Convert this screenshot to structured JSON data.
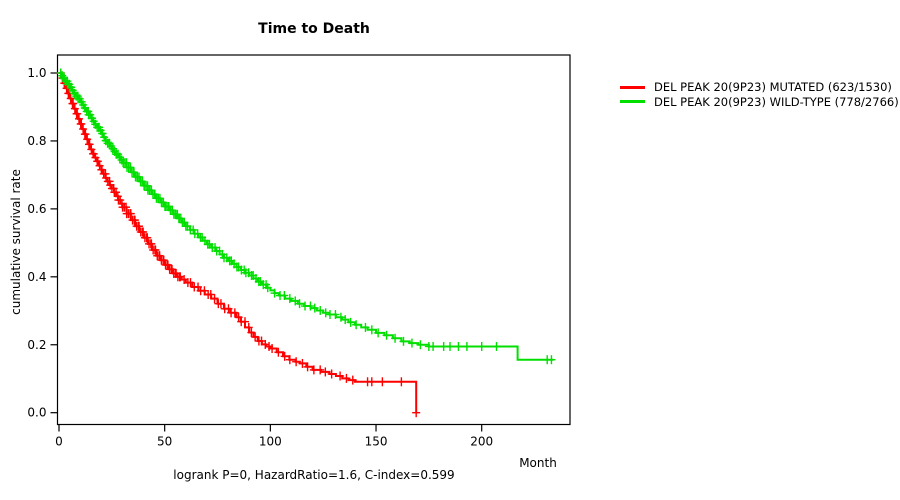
{
  "chart_data": {
    "type": "line",
    "subtype": "kaplan-meier-step-curves",
    "title": "Time to Death",
    "xlabel": "Month",
    "ylabel": "cumulative survival rate",
    "footer": "logrank P=0, HazardRatio=1.6, C-index=0.599",
    "xlim": [
      0,
      242
    ],
    "ylim": [
      0.0,
      1.0
    ],
    "x_ticks": [
      0,
      50,
      100,
      150,
      200
    ],
    "y_ticks": [
      0.0,
      0.2,
      0.4,
      0.6,
      0.8,
      1.0
    ],
    "grid": false,
    "legend_position": "right-outside",
    "axis_color": "#000000",
    "background": "#ffffff",
    "series": [
      {
        "name": "DEL PEAK 20(9P23) MUTATED (623/1530)",
        "color": "#ff0000",
        "steps": [
          [
            0,
            1
          ],
          [
            1,
            0.985
          ],
          [
            2,
            0.97
          ],
          [
            3,
            0.955
          ],
          [
            4,
            0.94
          ],
          [
            5,
            0.925
          ],
          [
            6,
            0.91
          ],
          [
            7,
            0.895
          ],
          [
            8,
            0.88
          ],
          [
            9,
            0.865
          ],
          [
            10,
            0.85
          ],
          [
            11,
            0.835
          ],
          [
            12,
            0.82
          ],
          [
            13,
            0.805
          ],
          [
            14,
            0.79
          ],
          [
            15,
            0.775
          ],
          [
            16,
            0.762
          ],
          [
            17,
            0.751
          ],
          [
            18,
            0.74
          ],
          [
            19,
            0.727
          ],
          [
            20,
            0.715
          ],
          [
            21,
            0.703
          ],
          [
            22,
            0.691
          ],
          [
            23,
            0.681
          ],
          [
            24,
            0.67
          ],
          [
            25,
            0.66
          ],
          [
            26,
            0.649
          ],
          [
            27,
            0.637
          ],
          [
            28,
            0.626
          ],
          [
            29,
            0.615
          ],
          [
            30,
            0.605
          ],
          [
            32,
            0.586
          ],
          [
            34,
            0.567
          ],
          [
            36,
            0.549
          ],
          [
            38,
            0.532
          ],
          [
            40,
            0.515
          ],
          [
            42,
            0.497
          ],
          [
            44,
            0.479
          ],
          [
            46,
            0.462
          ],
          [
            48,
            0.449
          ],
          [
            50,
            0.435
          ],
          [
            52,
            0.422
          ],
          [
            54,
            0.41
          ],
          [
            56,
            0.4
          ],
          [
            58,
            0.392
          ],
          [
            60,
            0.383
          ],
          [
            63,
            0.37
          ],
          [
            66,
            0.359
          ],
          [
            69,
            0.348
          ],
          [
            72,
            0.336
          ],
          [
            75,
            0.321
          ],
          [
            78,
            0.306
          ],
          [
            81,
            0.294
          ],
          [
            84,
            0.281
          ],
          [
            86,
            0.268
          ],
          [
            88,
            0.251
          ],
          [
            90,
            0.236
          ],
          [
            92,
            0.223
          ],
          [
            94,
            0.211
          ],
          [
            96,
            0.201
          ],
          [
            98,
            0.195
          ],
          [
            100,
            0.189
          ],
          [
            103,
            0.178
          ],
          [
            106,
            0.166
          ],
          [
            109,
            0.156
          ],
          [
            112,
            0.15
          ],
          [
            114,
            0.145
          ],
          [
            117,
            0.135
          ],
          [
            120,
            0.126
          ],
          [
            124,
            0.12
          ],
          [
            128,
            0.114
          ],
          [
            131,
            0.108
          ],
          [
            134,
            0.101
          ],
          [
            137,
            0.096
          ],
          [
            140,
            0.091
          ],
          [
            169,
            0.091
          ],
          [
            169,
            0
          ]
        ],
        "censor_ranges": [
          [
            1,
            58,
            0.65
          ],
          [
            59.2,
            99.5,
            1.6
          ],
          [
            101,
            129,
            2.8
          ]
        ],
        "censor_extra": [
          133,
          136,
          139,
          146,
          148,
          153,
          162,
          169
        ]
      },
      {
        "name": "DEL PEAK 20(9P23) WILD-TYPE (778/2766)",
        "color": "#00df00",
        "steps": [
          [
            0,
            1
          ],
          [
            1,
            0.992
          ],
          [
            2,
            0.984
          ],
          [
            3,
            0.976
          ],
          [
            4,
            0.967
          ],
          [
            5,
            0.958
          ],
          [
            6,
            0.949
          ],
          [
            7,
            0.94
          ],
          [
            8,
            0.932
          ],
          [
            9,
            0.924
          ],
          [
            10,
            0.915
          ],
          [
            11,
            0.906
          ],
          [
            12,
            0.897
          ],
          [
            13,
            0.887
          ],
          [
            14,
            0.877
          ],
          [
            15,
            0.867
          ],
          [
            16,
            0.858
          ],
          [
            17,
            0.849
          ],
          [
            18,
            0.84
          ],
          [
            19,
            0.831
          ],
          [
            20,
            0.822
          ],
          [
            21,
            0.811
          ],
          [
            22,
            0.801
          ],
          [
            23,
            0.793
          ],
          [
            24,
            0.785
          ],
          [
            25,
            0.777
          ],
          [
            26,
            0.769
          ],
          [
            27,
            0.761
          ],
          [
            28,
            0.752
          ],
          [
            29,
            0.744
          ],
          [
            30,
            0.736
          ],
          [
            32,
            0.722
          ],
          [
            34,
            0.708
          ],
          [
            36,
            0.694
          ],
          [
            38,
            0.681
          ],
          [
            40,
            0.668
          ],
          [
            42,
            0.655
          ],
          [
            44,
            0.643
          ],
          [
            46,
            0.631
          ],
          [
            48,
            0.619
          ],
          [
            50,
            0.607
          ],
          [
            52,
            0.596
          ],
          [
            54,
            0.584
          ],
          [
            56,
            0.572
          ],
          [
            58,
            0.56
          ],
          [
            60,
            0.549
          ],
          [
            62,
            0.538
          ],
          [
            64,
            0.527
          ],
          [
            66,
            0.516
          ],
          [
            68,
            0.506
          ],
          [
            70,
            0.496
          ],
          [
            72,
            0.486
          ],
          [
            74,
            0.476
          ],
          [
            76,
            0.466
          ],
          [
            78,
            0.456
          ],
          [
            80,
            0.447
          ],
          [
            82,
            0.438
          ],
          [
            84,
            0.429
          ],
          [
            86,
            0.42
          ],
          [
            88,
            0.412
          ],
          [
            90,
            0.404
          ],
          [
            92,
            0.395
          ],
          [
            94,
            0.386
          ],
          [
            96,
            0.377
          ],
          [
            98,
            0.368
          ],
          [
            100,
            0.36
          ],
          [
            102,
            0.352
          ],
          [
            104,
            0.345
          ],
          [
            107,
            0.336
          ],
          [
            110,
            0.329
          ],
          [
            113,
            0.321
          ],
          [
            116,
            0.314
          ],
          [
            119,
            0.308
          ],
          [
            122,
            0.301
          ],
          [
            125,
            0.294
          ],
          [
            128,
            0.289
          ],
          [
            131,
            0.281
          ],
          [
            134,
            0.274
          ],
          [
            137,
            0.266
          ],
          [
            140,
            0.259
          ],
          [
            143,
            0.251
          ],
          [
            146,
            0.244
          ],
          [
            150,
            0.235
          ],
          [
            154,
            0.228
          ],
          [
            158,
            0.219
          ],
          [
            162,
            0.21
          ],
          [
            166,
            0.205
          ],
          [
            170,
            0.2
          ],
          [
            175,
            0.195
          ],
          [
            217,
            0.195
          ],
          [
            217,
            0.156
          ],
          [
            234,
            0.156
          ]
        ],
        "censor_ranges": [
          [
            1,
            60,
            0.55
          ],
          [
            61,
            100,
            1.15
          ],
          [
            102,
            142,
            2.4
          ]
        ],
        "censor_extra": [
          145,
          148,
          151,
          155,
          159,
          163,
          167,
          171,
          175,
          177,
          182,
          185,
          189,
          193,
          200,
          207,
          231,
          233
        ]
      }
    ]
  }
}
